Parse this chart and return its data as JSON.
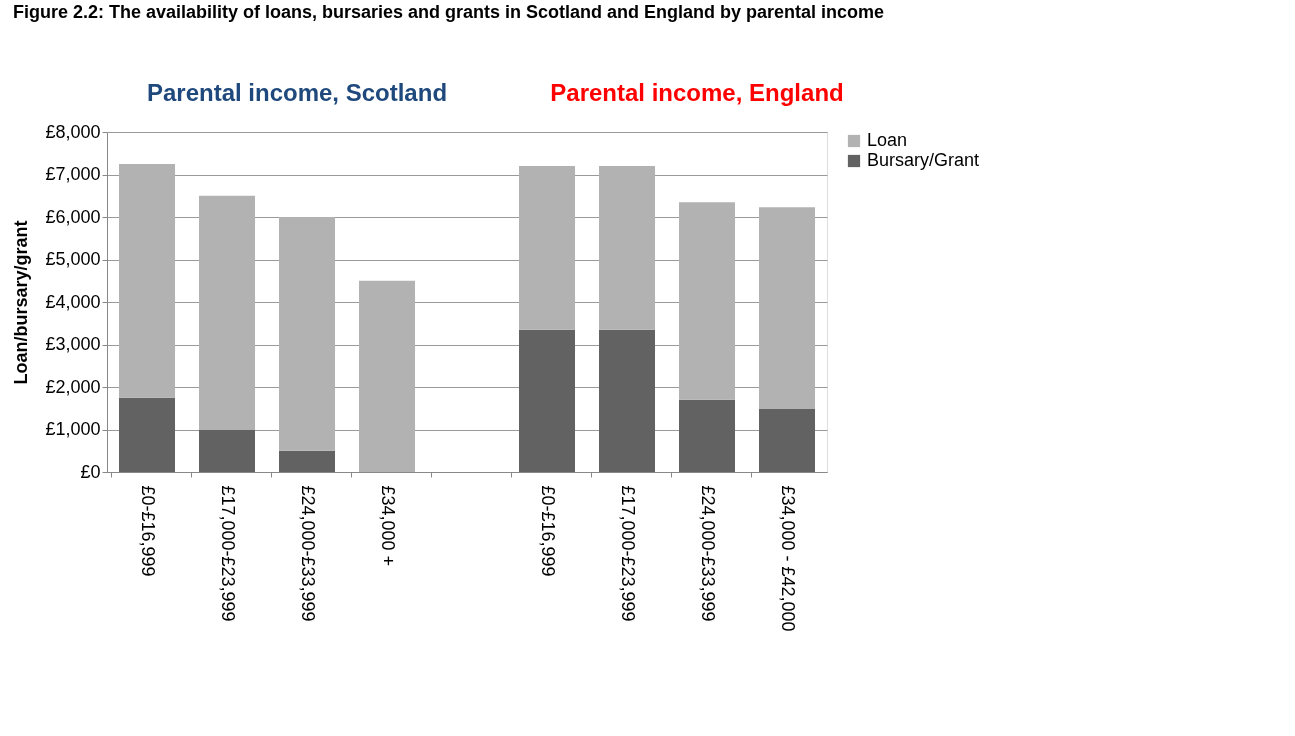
{
  "chart_data": {
    "type": "bar",
    "stacked": true,
    "title": "Figure 2.2:     The availability of loans, bursaries and grants in Scotland and England by parental income",
    "ylabel": "Loan/bursary/grant",
    "annotations": [
      "Parental income, Scotland",
      "Parental income, England"
    ],
    "categories": [
      "£0-£16,999",
      "£17,000-£23,999",
      "£24,000-£33,999",
      "£34,000 +",
      null,
      "£0-£16,999",
      "£17,000-£23,999",
      "£24,000-£33,999",
      "£34,000 - £42,000"
    ],
    "series": [
      {
        "name": "Bursary/Grant",
        "color": "#626262",
        "values": [
          1750,
          1000,
          500,
          0,
          null,
          3350,
          3350,
          1700,
          1480
        ]
      },
      {
        "name": "Loan",
        "color": "#b2b2b2",
        "values": [
          5500,
          5500,
          5500,
          4500,
          null,
          3850,
          3850,
          4650,
          4750
        ]
      }
    ],
    "ylim": [
      0,
      8000
    ],
    "yticks": [
      {
        "value": 0,
        "label": "£0"
      },
      {
        "value": 1000,
        "label": "£1,000"
      },
      {
        "value": 2000,
        "label": "£2,000"
      },
      {
        "value": 3000,
        "label": "£3,000"
      },
      {
        "value": 4000,
        "label": "£4,000"
      },
      {
        "value": 5000,
        "label": "£5,000"
      },
      {
        "value": 6000,
        "label": "£6,000"
      },
      {
        "value": 7000,
        "label": "£7,000"
      },
      {
        "value": 8000,
        "label": "£8,000"
      }
    ],
    "grid": "y",
    "legend": "right"
  }
}
